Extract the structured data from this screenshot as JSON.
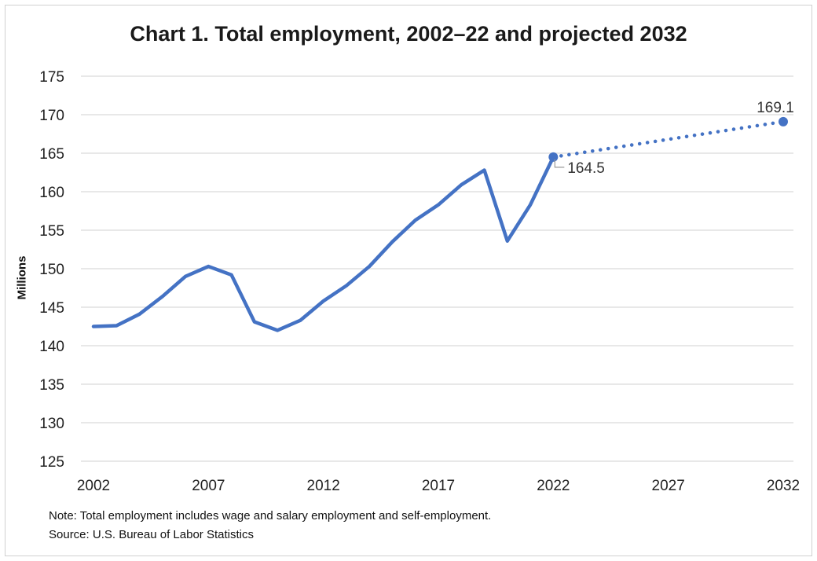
{
  "chart_data": {
    "type": "line",
    "title": "Chart 1. Total employment, 2002–22 and projected 2032",
    "xlabel": "",
    "ylabel": "Millions",
    "xlim": [
      2002,
      2032
    ],
    "ylim": [
      125,
      175
    ],
    "x_ticks": [
      2002,
      2007,
      2012,
      2017,
      2022,
      2027,
      2032
    ],
    "y_ticks": [
      125,
      130,
      135,
      140,
      145,
      150,
      155,
      160,
      165,
      170,
      175
    ],
    "grid": "horizontal",
    "series": [
      {
        "style": "solid",
        "x": [
          2002,
          2003,
          2004,
          2005,
          2006,
          2007,
          2008,
          2009,
          2010,
          2011,
          2012,
          2013,
          2014,
          2015,
          2016,
          2017,
          2018,
          2019,
          2020,
          2021,
          2022
        ],
        "values": [
          142.5,
          142.6,
          144.1,
          146.4,
          149.0,
          150.3,
          149.2,
          143.1,
          142.0,
          143.3,
          145.8,
          147.8,
          150.3,
          153.5,
          156.3,
          158.3,
          160.9,
          162.8,
          153.6,
          158.3,
          164.5
        ]
      },
      {
        "style": "dotted",
        "x": [
          2022,
          2032
        ],
        "values": [
          164.5,
          169.1
        ]
      }
    ],
    "annotations": [
      {
        "x": 2022,
        "y": 164.5,
        "label": "164.5"
      },
      {
        "x": 2032,
        "y": 169.1,
        "label": "169.1"
      }
    ],
    "line_color": "#4472c4",
    "grid_color": "#d9d9d9"
  },
  "notes": {
    "note": "Note: Total employment includes wage and salary employment and self-employment.",
    "source": "Source: U.S. Bureau of Labor Statistics"
  }
}
